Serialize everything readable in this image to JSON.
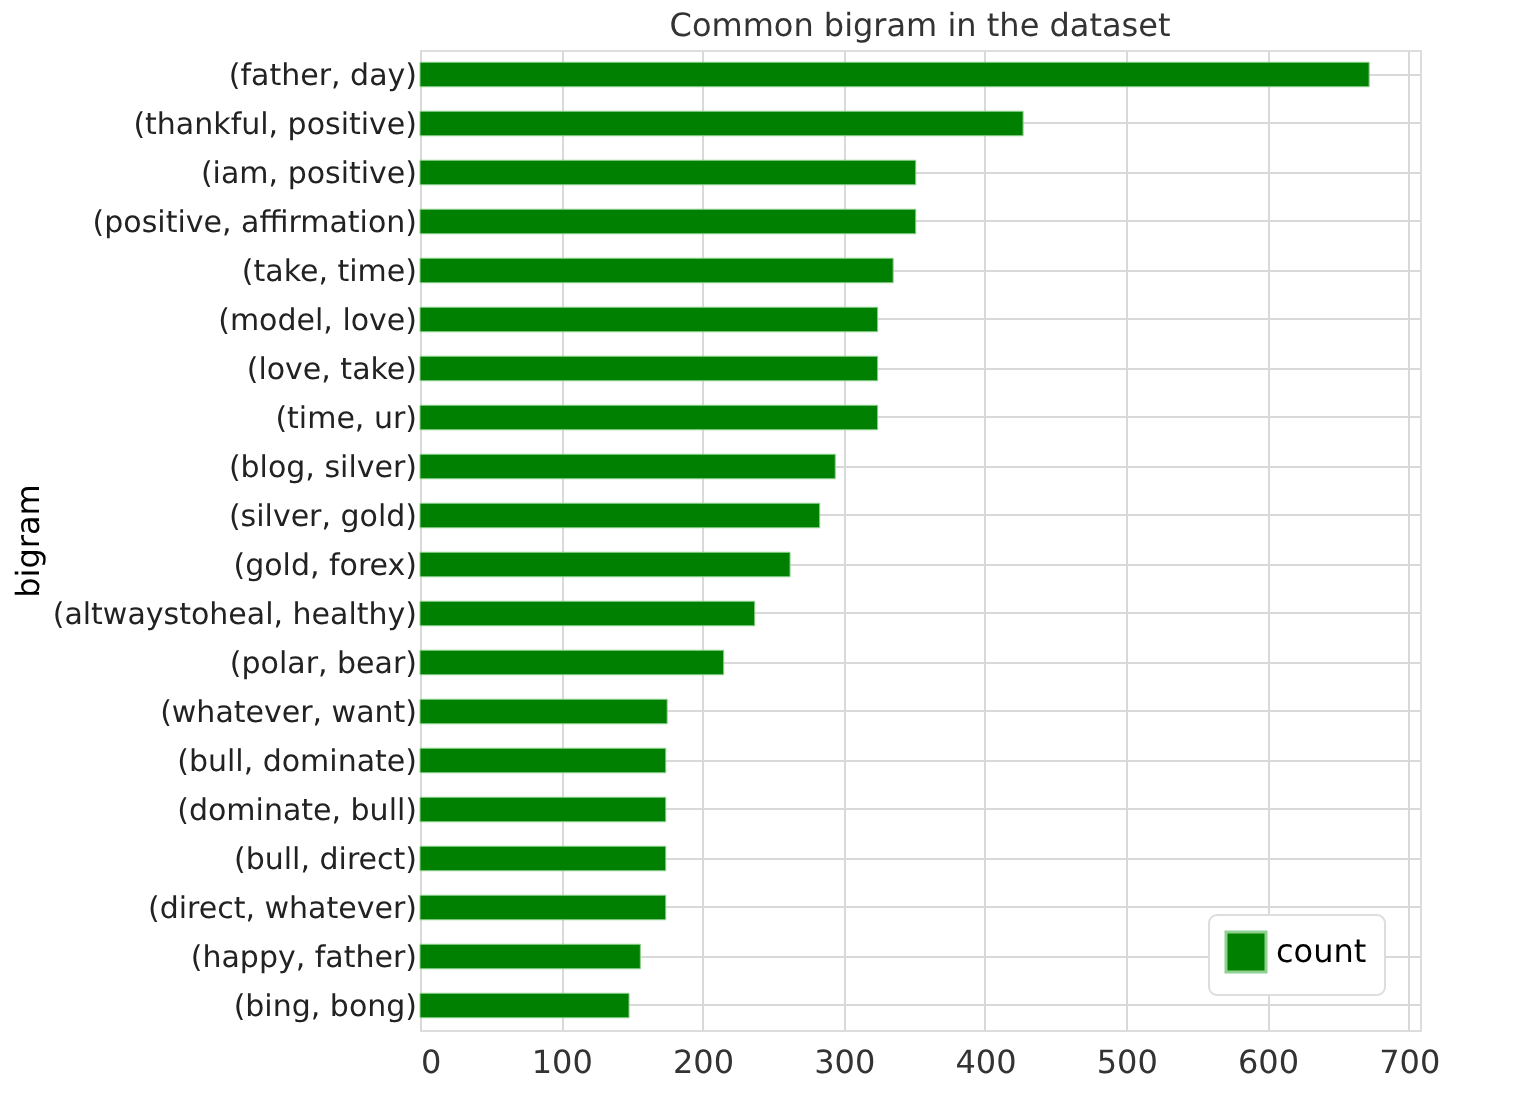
{
  "chart_data": {
    "type": "bar",
    "orientation": "horizontal",
    "title": "Common bigram in the dataset",
    "ylabel": "bigram",
    "categories": [
      "(father, day)",
      "(thankful, positive)",
      "(iam, positive)",
      "(positive, affirmation)",
      "(take, time)",
      "(model, love)",
      "(love, take)",
      "(time, ur)",
      "(blog, silver)",
      "(silver, gold)",
      "(gold, forex)",
      "(altwaystoheal, healthy)",
      "(polar, bear)",
      "(whatever, want)",
      "(bull, dominate)",
      "(dominate, bull)",
      "(bull, direct)",
      "(direct, whatever)",
      "(happy, father)",
      "(bing, bong)"
    ],
    "series": [
      {
        "name": "count",
        "color": "#008000",
        "values": [
          672,
          427,
          351,
          351,
          335,
          324,
          324,
          324,
          294,
          283,
          262,
          237,
          215,
          175,
          174,
          174,
          174,
          174,
          156,
          148
        ]
      }
    ],
    "xlim": [
      0,
      708
    ],
    "xticks": [
      0,
      100,
      200,
      300,
      400,
      500,
      600,
      700
    ],
    "grid": true,
    "legend": "bottom right"
  }
}
